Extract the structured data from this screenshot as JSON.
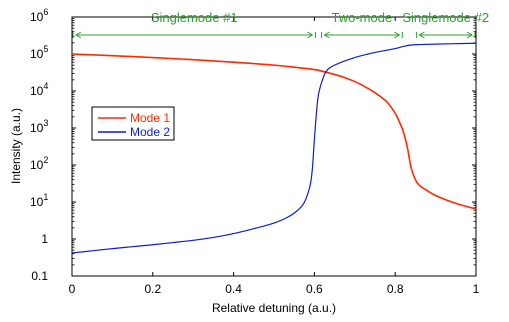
{
  "chart_data": {
    "type": "line",
    "xlabel": "Relative detuning (a.u.)",
    "ylabel": "Intensity (a.u.)",
    "xlim": [
      0,
      1
    ],
    "ylim": [
      0.1,
      1000000
    ],
    "yscale": "log",
    "grid": false,
    "legend_position": "left",
    "x_ticks": [
      "0",
      "0.2",
      "0.4",
      "0.6",
      "0.8",
      "1"
    ],
    "y_ticks": [
      {
        "base": "0.1",
        "exp": ""
      },
      {
        "base": "1",
        "exp": ""
      },
      {
        "base": "10",
        "exp": "1"
      },
      {
        "base": "10",
        "exp": "2"
      },
      {
        "base": "10",
        "exp": "3"
      },
      {
        "base": "10",
        "exp": "4"
      },
      {
        "base": "10",
        "exp": "5"
      },
      {
        "base": "10",
        "exp": "6"
      }
    ],
    "series": [
      {
        "name": "Mode 1",
        "color": "#ff2a00",
        "x": [
          0.0,
          0.05,
          0.1,
          0.15,
          0.2,
          0.25,
          0.3,
          0.35,
          0.4,
          0.45,
          0.5,
          0.55,
          0.6,
          0.62,
          0.65,
          0.68,
          0.7,
          0.72,
          0.75,
          0.78,
          0.8,
          0.81,
          0.82,
          0.83,
          0.835,
          0.84,
          0.85,
          0.86,
          0.88,
          0.9,
          0.93,
          0.96,
          1.0
        ],
        "y": [
          100000,
          95000,
          90000,
          85000,
          80000,
          75000,
          70000,
          65000,
          60000,
          55000,
          50000,
          44000,
          38000,
          34000,
          28000,
          22000,
          18000,
          14000,
          9000,
          5000,
          2500,
          1500,
          800,
          300,
          150,
          80,
          40,
          28,
          20,
          15,
          11,
          8.5,
          6.5
        ]
      },
      {
        "name": "Mode 2",
        "color": "#0a1fcf",
        "x": [
          0.0,
          0.05,
          0.1,
          0.15,
          0.2,
          0.25,
          0.3,
          0.35,
          0.4,
          0.45,
          0.5,
          0.53,
          0.55,
          0.57,
          0.58,
          0.59,
          0.595,
          0.6,
          0.605,
          0.61,
          0.62,
          0.63,
          0.65,
          0.7,
          0.75,
          0.8,
          0.82,
          0.84,
          0.86,
          0.9,
          0.95,
          1.0
        ],
        "y": [
          0.42,
          0.48,
          0.55,
          0.62,
          0.7,
          0.8,
          0.92,
          1.1,
          1.4,
          1.9,
          2.7,
          3.7,
          5.0,
          8.0,
          13,
          30,
          80,
          500,
          2500,
          8000,
          20000,
          35000,
          50000,
          80000,
          110000,
          140000,
          160000,
          175000,
          180000,
          185000,
          190000,
          195000
        ]
      }
    ],
    "regions": [
      {
        "label": "Singlemode #1",
        "x_start": 0.0,
        "x_end": 0.605
      },
      {
        "label": "Two-mode",
        "x_start": 0.615,
        "x_end": 0.82
      },
      {
        "label": "Singlemode #2",
        "x_start": 0.85,
        "x_end": 1.0
      }
    ],
    "region_color": "#2ea02e"
  }
}
